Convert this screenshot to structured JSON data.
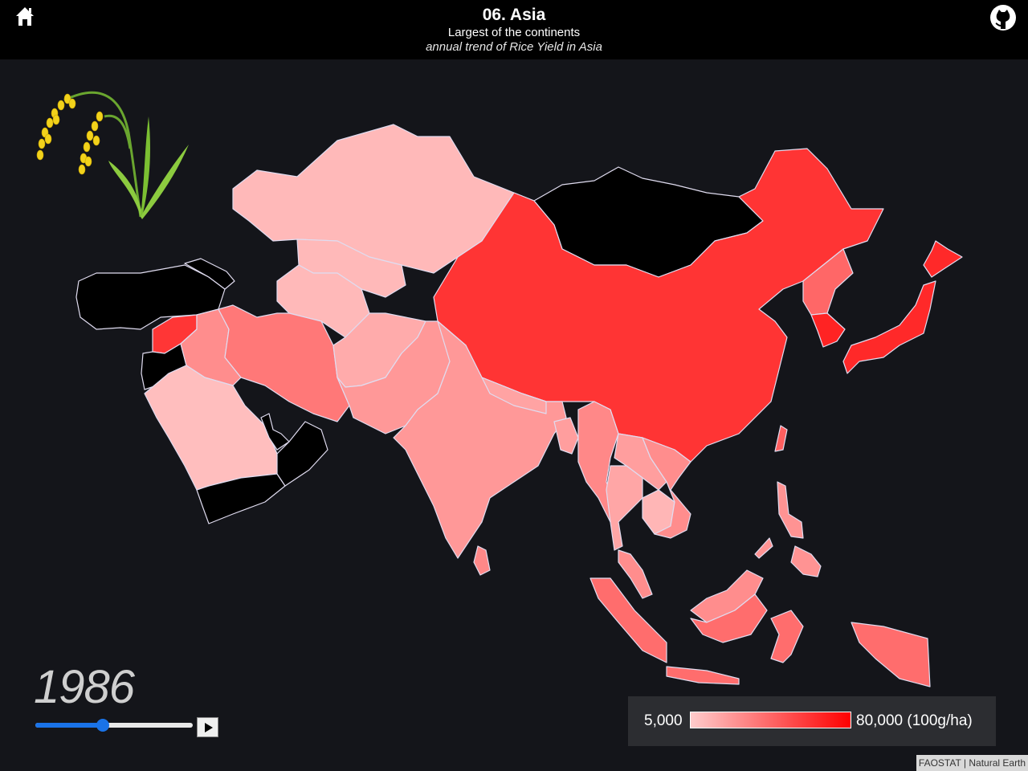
{
  "header": {
    "title": "06. Asia",
    "subtitle": "Largest of the continents",
    "caption": "annual trend of Rice Yield in Asia",
    "home_icon": "home-icon",
    "github_icon": "github-icon"
  },
  "map_data": {
    "type": "choropleth",
    "variable": "Rice Yield",
    "unit": "100g/ha",
    "no_data_color": "#000000",
    "scale": {
      "min": 5000,
      "max": 80000,
      "min_color": "#ffcccc",
      "max_color": "#ff0000"
    },
    "countries": [
      {
        "name": "China",
        "yield": 61000
      },
      {
        "name": "Japan",
        "yield": 65000
      },
      {
        "name": "South Korea",
        "yield": 67000
      },
      {
        "name": "North Korea",
        "yield": 42000
      },
      {
        "name": "Syria",
        "yield": 60000
      },
      {
        "name": "Iran",
        "yield": 36000
      },
      {
        "name": "Iraq",
        "yield": 28000
      },
      {
        "name": "India",
        "yield": 24000
      },
      {
        "name": "Pakistan",
        "yield": 24000
      },
      {
        "name": "Afghanistan",
        "yield": 17000
      },
      {
        "name": "Bangladesh",
        "yield": 22000
      },
      {
        "name": "Nepal",
        "yield": 20000
      },
      {
        "name": "Myanmar",
        "yield": 30000
      },
      {
        "name": "Thailand",
        "yield": 19000
      },
      {
        "name": "Laos",
        "yield": 22000
      },
      {
        "name": "Cambodia",
        "yield": 13000
      },
      {
        "name": "Vietnam",
        "yield": 28000
      },
      {
        "name": "Malaysia",
        "yield": 28000
      },
      {
        "name": "Indonesia",
        "yield": 40000
      },
      {
        "name": "Philippines",
        "yield": 26000
      },
      {
        "name": "Sri Lanka",
        "yield": 30000
      },
      {
        "name": "Taiwan",
        "yield": 45000
      },
      {
        "name": "Kazakhstan",
        "yield": 12000
      },
      {
        "name": "Uzbekistan",
        "yield": 12000
      },
      {
        "name": "Turkmenistan",
        "yield": 12000
      },
      {
        "name": "Saudi Arabia",
        "yield": 10000
      },
      {
        "name": "Mongolia",
        "yield": null
      },
      {
        "name": "Turkey",
        "yield": null
      },
      {
        "name": "Yemen",
        "yield": null
      },
      {
        "name": "Oman",
        "yield": null
      }
    ]
  },
  "timeline": {
    "year": "1986",
    "first_year": 1961,
    "last_year": 2019
  },
  "legend": {
    "min_label": "5,000",
    "max_label": "80,000 (100g/ha)"
  },
  "attribution": "FAOSTAT | Natural Earth"
}
